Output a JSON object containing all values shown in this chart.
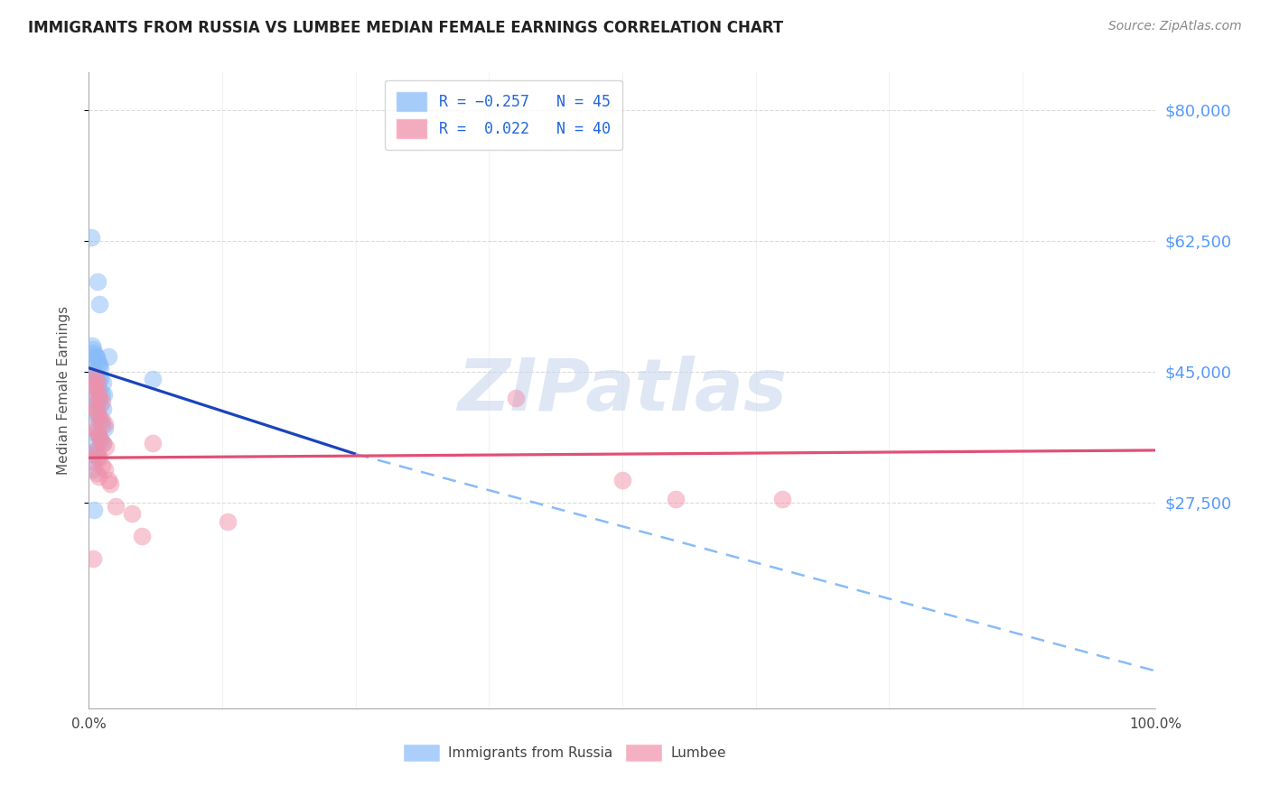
{
  "title": "IMMIGRANTS FROM RUSSIA VS LUMBEE MEDIAN FEMALE EARNINGS CORRELATION CHART",
  "source": "Source: ZipAtlas.com",
  "ylabel": "Median Female Earnings",
  "ylim": [
    0,
    85000
  ],
  "xlim": [
    0,
    1.0
  ],
  "y_tick_positions": [
    27500,
    45000,
    62500,
    80000
  ],
  "watermark_zip": "ZIP",
  "watermark_atlas": "atlas",
  "russia_color": "#88bbf8",
  "lumbee_color": "#f090aa",
  "russia_scatter": [
    [
      0.002,
      63000
    ],
    [
      0.008,
      57000
    ],
    [
      0.01,
      54000
    ],
    [
      0.003,
      48500
    ],
    [
      0.004,
      48000
    ],
    [
      0.005,
      47500
    ],
    [
      0.006,
      47000
    ],
    [
      0.007,
      47000
    ],
    [
      0.008,
      46500
    ],
    [
      0.009,
      46000
    ],
    [
      0.01,
      46000
    ],
    [
      0.011,
      45500
    ],
    [
      0.003,
      45000
    ],
    [
      0.005,
      45000
    ],
    [
      0.007,
      44500
    ],
    [
      0.009,
      44000
    ],
    [
      0.011,
      44000
    ],
    [
      0.013,
      43500
    ],
    [
      0.006,
      43000
    ],
    [
      0.008,
      43000
    ],
    [
      0.01,
      42500
    ],
    [
      0.012,
      42000
    ],
    [
      0.014,
      42000
    ],
    [
      0.004,
      41500
    ],
    [
      0.007,
      41000
    ],
    [
      0.009,
      41000
    ],
    [
      0.011,
      40500
    ],
    [
      0.013,
      40000
    ],
    [
      0.006,
      39500
    ],
    [
      0.008,
      39000
    ],
    [
      0.01,
      38500
    ],
    [
      0.012,
      38000
    ],
    [
      0.015,
      37500
    ],
    [
      0.004,
      37000
    ],
    [
      0.009,
      36500
    ],
    [
      0.011,
      36000
    ],
    [
      0.013,
      35500
    ],
    [
      0.005,
      35000
    ],
    [
      0.007,
      34500
    ],
    [
      0.003,
      34000
    ],
    [
      0.008,
      33500
    ],
    [
      0.018,
      47000
    ],
    [
      0.06,
      44000
    ],
    [
      0.005,
      26500
    ],
    [
      0.004,
      32000
    ]
  ],
  "lumbee_scatter": [
    [
      0.004,
      44500
    ],
    [
      0.006,
      44000
    ],
    [
      0.008,
      43500
    ],
    [
      0.005,
      43000
    ],
    [
      0.007,
      42500
    ],
    [
      0.009,
      42000
    ],
    [
      0.01,
      41500
    ],
    [
      0.012,
      41000
    ],
    [
      0.004,
      40500
    ],
    [
      0.006,
      40000
    ],
    [
      0.008,
      39500
    ],
    [
      0.01,
      39000
    ],
    [
      0.012,
      38500
    ],
    [
      0.015,
      38000
    ],
    [
      0.005,
      37500
    ],
    [
      0.007,
      37000
    ],
    [
      0.009,
      36500
    ],
    [
      0.011,
      36000
    ],
    [
      0.013,
      35500
    ],
    [
      0.016,
      35000
    ],
    [
      0.006,
      34500
    ],
    [
      0.008,
      34000
    ],
    [
      0.01,
      33500
    ],
    [
      0.003,
      33000
    ],
    [
      0.012,
      32500
    ],
    [
      0.015,
      32000
    ],
    [
      0.007,
      31500
    ],
    [
      0.009,
      31000
    ],
    [
      0.018,
      30500
    ],
    [
      0.02,
      30000
    ],
    [
      0.025,
      27000
    ],
    [
      0.04,
      26000
    ],
    [
      0.05,
      23000
    ],
    [
      0.4,
      41500
    ],
    [
      0.06,
      35500
    ],
    [
      0.5,
      30500
    ],
    [
      0.55,
      28000
    ],
    [
      0.65,
      28000
    ],
    [
      0.004,
      20000
    ],
    [
      0.13,
      25000
    ]
  ],
  "russia_solid_line": {
    "x0": 0.0,
    "y0": 45500,
    "x1": 0.25,
    "y1": 34000
  },
  "russia_dashed_line": {
    "x0": 0.25,
    "y0": 34000,
    "x1": 1.0,
    "y1": 5000
  },
  "lumbee_solid_line": {
    "x0": 0.0,
    "y0": 33500,
    "x1": 1.0,
    "y1": 34500
  },
  "background_color": "#ffffff",
  "grid_color": "#cccccc",
  "title_color": "#222222",
  "right_tick_color": "#5599ff",
  "legend_box_color": "#88bbf8",
  "legend_box_color2": "#f090aa",
  "legend_text_color": "#2266dd"
}
